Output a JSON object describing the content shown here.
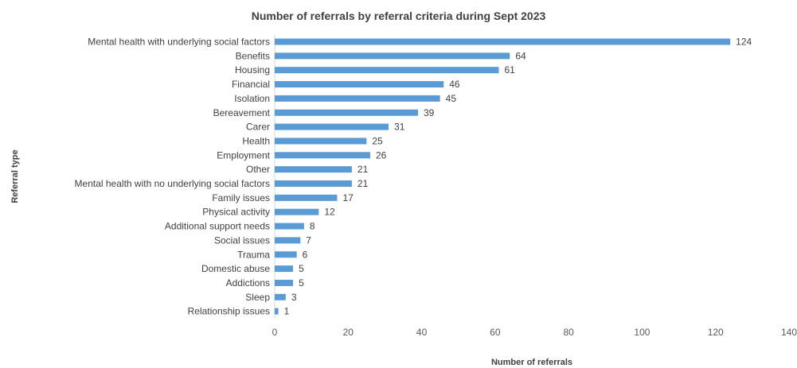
{
  "chart_data": {
    "type": "bar",
    "orientation": "horizontal",
    "title": "Number of referrals by referral criteria during Sept 2023",
    "xlabel": "Number of referrals",
    "ylabel": "Referral type",
    "xlim": [
      0,
      140
    ],
    "x_ticks": [
      "0",
      "20",
      "40",
      "60",
      "80",
      "100",
      "120",
      "140"
    ],
    "grid": false,
    "bar_color": "#5B9BD5",
    "categories": [
      "Mental health with underlying social factors",
      "Benefits",
      "Housing",
      "Financial",
      "Isolation",
      "Bereavement",
      "Carer",
      "Health",
      "Employment",
      "Other",
      "Mental health with no underlying social factors",
      "Family issues",
      "Physical activity",
      "Additional support needs",
      "Social issues",
      "Trauma",
      "Domestic abuse",
      "Addictions",
      "Sleep",
      "Relationship issues"
    ],
    "values": [
      124,
      64,
      61,
      46,
      45,
      39,
      31,
      25,
      26,
      21,
      21,
      17,
      12,
      8,
      7,
      6,
      5,
      5,
      3,
      1
    ]
  }
}
